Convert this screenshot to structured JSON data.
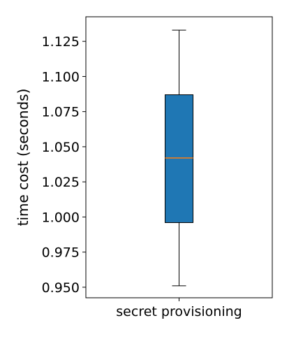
{
  "chart_data": {
    "type": "box",
    "title": "",
    "xlabel": "",
    "ylabel": "time cost (seconds)",
    "categories": [
      "secret provisioning"
    ],
    "series": [
      {
        "whisker_low": 0.951,
        "q1": 0.996,
        "median": 1.042,
        "q3": 1.087,
        "whisker_high": 1.133
      }
    ],
    "ylim": [
      0.9425,
      1.1425
    ],
    "yticks": [
      0.95,
      0.975,
      1.0,
      1.025,
      1.05,
      1.075,
      1.1,
      1.125
    ],
    "ytick_labels": [
      "0.950",
      "0.975",
      "1.000",
      "1.025",
      "1.050",
      "1.075",
      "1.100",
      "1.125"
    ],
    "grid": false,
    "colors": {
      "box_fill": "#1f77b4",
      "median": "#ff7f0e",
      "edge": "#000000"
    }
  }
}
